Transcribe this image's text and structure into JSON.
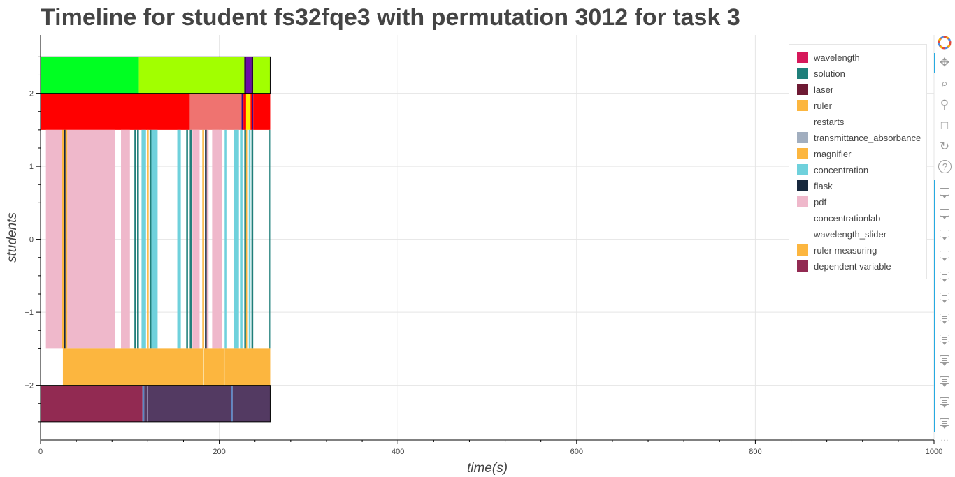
{
  "chart_data": {
    "type": "timeline",
    "title": "Timeline for student fs32fqe3 with permutation 3012 for task 3",
    "xlabel": "time(s)",
    "ylabel": "students",
    "xlim": [
      0,
      1000
    ],
    "ylim": [
      -2.75,
      2.8
    ],
    "x_ticks": [
      0,
      200,
      400,
      600,
      800,
      1000
    ],
    "y_ticks": [
      -2,
      -1,
      0,
      1,
      2
    ],
    "y_tick_labels": [
      "−2",
      "−1",
      "0",
      "1",
      "2"
    ],
    "legend": [
      {
        "label": "wavelength",
        "color": "#d6185a"
      },
      {
        "label": "solution",
        "color": "#1f7f7a"
      },
      {
        "label": "laser",
        "color": "#6e1a34"
      },
      {
        "label": "ruler",
        "color": "#fcb63f"
      },
      {
        "label": "restarts",
        "color": ""
      },
      {
        "label": "transmittance_absorbance",
        "color": "#a1aebf"
      },
      {
        "label": "magnifier",
        "color": "#fcb63f"
      },
      {
        "label": "concentration",
        "color": "#6fd1dc"
      },
      {
        "label": "flask",
        "color": "#17283d"
      },
      {
        "label": "pdf",
        "color": "#efb8cb"
      },
      {
        "label": "concentrationlab",
        "color": ""
      },
      {
        "label": "wavelength_slider",
        "color": ""
      },
      {
        "label": "ruler measuring",
        "color": "#fcb63f"
      },
      {
        "label": "dependent variable",
        "color": "#922a52"
      }
    ],
    "rows": [
      {
        "y0": 2.0,
        "y1": 2.5,
        "segments": [
          {
            "start": 0,
            "end": 110,
            "color": "#00ff22"
          },
          {
            "start": 110,
            "end": 228,
            "color": "#a2ff00"
          },
          {
            "start": 228,
            "end": 230,
            "color": "#2a0040"
          },
          {
            "start": 230,
            "end": 236,
            "color": "#6a0da8"
          },
          {
            "start": 236,
            "end": 238,
            "color": "#2a0040"
          },
          {
            "start": 238,
            "end": 257,
            "color": "#a2ff00"
          }
        ]
      },
      {
        "y0": 1.5,
        "y1": 2.0,
        "segments": [
          {
            "start": 0,
            "end": 167,
            "color": "#ff0000"
          },
          {
            "start": 167,
            "end": 225,
            "color": "#ef7370"
          },
          {
            "start": 225,
            "end": 227,
            "color": "#3a0a8c"
          },
          {
            "start": 227,
            "end": 230,
            "color": "#ff0000"
          },
          {
            "start": 230,
            "end": 235,
            "color": "#ffee00"
          },
          {
            "start": 235,
            "end": 237,
            "color": "#ff0000"
          },
          {
            "start": 237,
            "end": 238,
            "color": "#3a0a8c"
          },
          {
            "start": 238,
            "end": 257,
            "color": "#ff0000"
          }
        ]
      },
      {
        "y0": -1.5,
        "y1": 1.5,
        "segments": [
          {
            "start": 6,
            "end": 24,
            "color": "#efb8cb"
          },
          {
            "start": 24,
            "end": 26,
            "color": "#fcb63f"
          },
          {
            "start": 26,
            "end": 28,
            "color": "#17283d"
          },
          {
            "start": 28,
            "end": 30,
            "color": "#fcb63f"
          },
          {
            "start": 30,
            "end": 83,
            "color": "#efb8cb"
          },
          {
            "start": 90,
            "end": 100,
            "color": "#efb8cb"
          },
          {
            "start": 105,
            "end": 107,
            "color": "#1f7f7a"
          },
          {
            "start": 108,
            "end": 110,
            "color": "#1f7f7a"
          },
          {
            "start": 113,
            "end": 118,
            "color": "#6fd1dc"
          },
          {
            "start": 119,
            "end": 121,
            "color": "#fcb63f"
          },
          {
            "start": 122,
            "end": 124,
            "color": "#1f7f7a"
          },
          {
            "start": 124,
            "end": 131,
            "color": "#6fd1dc"
          },
          {
            "start": 153,
            "end": 157,
            "color": "#6fd1dc"
          },
          {
            "start": 163,
            "end": 165,
            "color": "#1f7f7a"
          },
          {
            "start": 167,
            "end": 169,
            "color": "#1f7f7a"
          },
          {
            "start": 170,
            "end": 178,
            "color": "#efb8cb"
          },
          {
            "start": 181,
            "end": 183,
            "color": "#fcb63f"
          },
          {
            "start": 184,
            "end": 186,
            "color": "#17283d"
          },
          {
            "start": 186,
            "end": 188,
            "color": "#efb8cb"
          },
          {
            "start": 192,
            "end": 203,
            "color": "#efb8cb"
          },
          {
            "start": 206,
            "end": 208,
            "color": "#6fd1dc"
          },
          {
            "start": 216,
            "end": 222,
            "color": "#6fd1dc"
          },
          {
            "start": 224,
            "end": 226,
            "color": "#6fd1dc"
          },
          {
            "start": 228,
            "end": 230,
            "color": "#1f7f7a"
          },
          {
            "start": 230,
            "end": 232,
            "color": "#fcb63f"
          },
          {
            "start": 233,
            "end": 235,
            "color": "#6fd1dc"
          },
          {
            "start": 236,
            "end": 238,
            "color": "#1f7f7a"
          },
          {
            "start": 256,
            "end": 257,
            "color": "#1f7f7a"
          }
        ]
      },
      {
        "y0": -2.0,
        "y1": -1.5,
        "segments": [
          {
            "start": 25,
            "end": 182,
            "color": "#fcb63f"
          },
          {
            "start": 182,
            "end": 183,
            "color": "#fde0a0"
          },
          {
            "start": 183,
            "end": 205,
            "color": "#fcb63f"
          },
          {
            "start": 205,
            "end": 206,
            "color": "#fde0a0"
          },
          {
            "start": 206,
            "end": 257,
            "color": "#fcb63f"
          }
        ]
      },
      {
        "y0": -2.5,
        "y1": -2.0,
        "segments": [
          {
            "start": 0,
            "end": 114,
            "color": "#922a52"
          },
          {
            "start": 114,
            "end": 116,
            "color": "#5c86c5"
          },
          {
            "start": 116,
            "end": 119,
            "color": "#533a62"
          },
          {
            "start": 119,
            "end": 120,
            "color": "#8a7aa0"
          },
          {
            "start": 120,
            "end": 213,
            "color": "#533a62"
          },
          {
            "start": 213,
            "end": 215,
            "color": "#5c86c5"
          },
          {
            "start": 215,
            "end": 257,
            "color": "#533a62"
          }
        ]
      }
    ],
    "outlines": [
      {
        "x0": 0,
        "x1": 257,
        "y0": 2.0,
        "y1": 2.5
      },
      {
        "x0": 0,
        "x1": 257,
        "y0": -2.5,
        "y1": -2.0
      }
    ]
  },
  "toolbar": {
    "logo_icon": "bokeh-logo-icon",
    "tools": [
      "pan-icon",
      "box-zoom-icon",
      "wheel-zoom-icon",
      "save-icon",
      "reset-icon",
      "help-icon"
    ],
    "hover_tool_count": 12,
    "more": "…"
  }
}
